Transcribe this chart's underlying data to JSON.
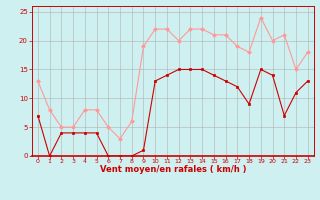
{
  "x": [
    0,
    1,
    2,
    3,
    4,
    5,
    6,
    7,
    8,
    9,
    10,
    11,
    12,
    13,
    14,
    15,
    16,
    17,
    18,
    19,
    20,
    21,
    22,
    23
  ],
  "vent_moyen": [
    7,
    0,
    4,
    4,
    4,
    4,
    0,
    0,
    0,
    1,
    13,
    14,
    15,
    15,
    15,
    14,
    13,
    12,
    9,
    15,
    14,
    7,
    11,
    13
  ],
  "en_rafales": [
    13,
    8,
    5,
    5,
    8,
    8,
    5,
    3,
    6,
    19,
    22,
    22,
    20,
    22,
    22,
    21,
    21,
    19,
    18,
    24,
    20,
    21,
    15,
    18
  ],
  "bg_color": "#cff0f0",
  "grid_color": "#b0b0b0",
  "color_moyen": "#cc0000",
  "color_rafales": "#ff9999",
  "xlabel": "Vent moyen/en rafales ( km/h )",
  "ylim": [
    0,
    26
  ],
  "yticks": [
    0,
    5,
    10,
    15,
    20,
    25
  ],
  "xticks": [
    0,
    1,
    2,
    3,
    4,
    5,
    6,
    7,
    8,
    9,
    10,
    11,
    12,
    13,
    14,
    15,
    16,
    17,
    18,
    19,
    20,
    21,
    22,
    23
  ],
  "figwidth": 3.2,
  "figheight": 2.0,
  "dpi": 100
}
